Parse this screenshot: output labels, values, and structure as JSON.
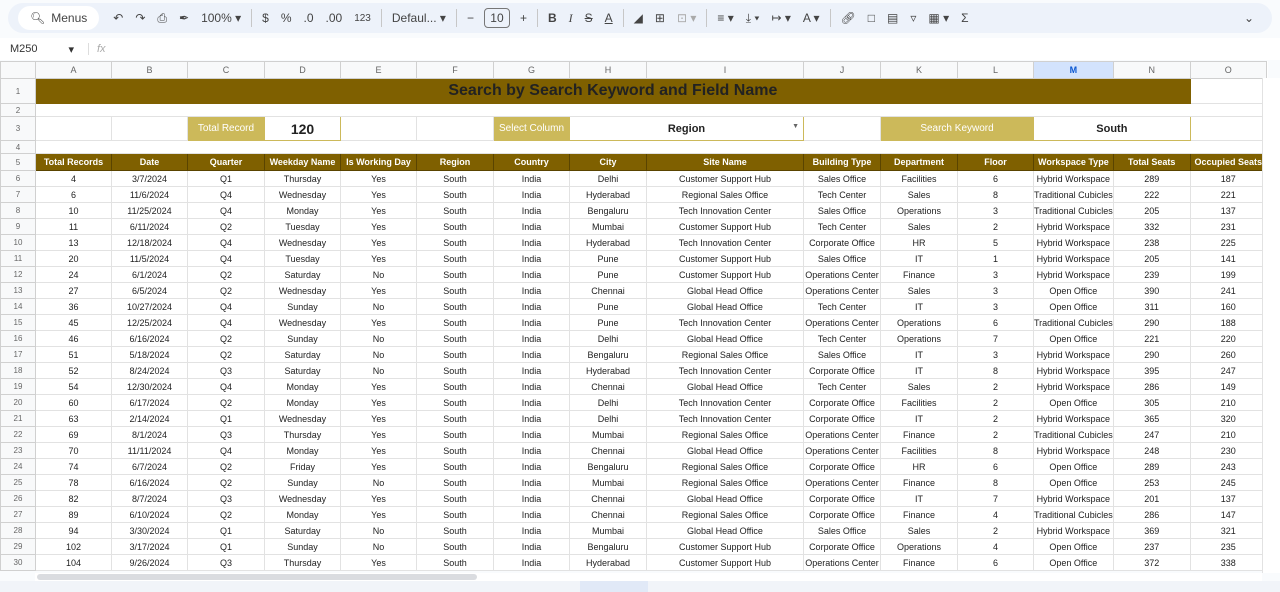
{
  "toolbar": {
    "menus": "Menus",
    "zoom": "100%",
    "currency": "$",
    "percent": "%",
    "dec_decrease": ".0",
    "dec_increase": ".00",
    "format_123": "123",
    "font": "Defaul...",
    "font_size": "10"
  },
  "formula_bar": {
    "cell_ref": "M250",
    "fx": "fx",
    "value": ""
  },
  "columns": [
    "A",
    "B",
    "C",
    "D",
    "E",
    "F",
    "G",
    "H",
    "I",
    "J",
    "K",
    "L",
    "M",
    "N",
    "O"
  ],
  "selected_column": "M",
  "title": "Search by Search Keyword and Field Name",
  "summary": {
    "total_record_label": "Total Record",
    "total_record_value": "120",
    "select_column_label": "Select Column",
    "select_column_value": "Region",
    "search_keyword_label": "Search Keyword",
    "search_keyword_value": "South"
  },
  "colors": {
    "header_bg": "#7f6000",
    "label_bg": "#ccb95a"
  },
  "table": {
    "headers": [
      "Total Records",
      "Date",
      "Quarter",
      "Weekday Name",
      "Is Working Day",
      "Region",
      "Country",
      "City",
      "Site Name",
      "Building Type",
      "Department",
      "Floor",
      "Workspace Type",
      "Total Seats",
      "Occupied Seats"
    ],
    "rows": [
      [
        "4",
        "3/7/2024",
        "Q1",
        "Thursday",
        "Yes",
        "South",
        "India",
        "Delhi",
        "Customer Support Hub",
        "Sales Office",
        "Facilities",
        "6",
        "Hybrid Workspace",
        "289",
        "187"
      ],
      [
        "6",
        "11/6/2024",
        "Q4",
        "Wednesday",
        "Yes",
        "South",
        "India",
        "Hyderabad",
        "Regional Sales Office",
        "Tech Center",
        "Sales",
        "8",
        "Traditional Cubicles",
        "222",
        "221"
      ],
      [
        "10",
        "11/25/2024",
        "Q4",
        "Monday",
        "Yes",
        "South",
        "India",
        "Bengaluru",
        "Tech Innovation Center",
        "Sales Office",
        "Operations",
        "3",
        "Traditional Cubicles",
        "205",
        "137"
      ],
      [
        "11",
        "6/11/2024",
        "Q2",
        "Tuesday",
        "Yes",
        "South",
        "India",
        "Mumbai",
        "Customer Support Hub",
        "Tech Center",
        "Sales",
        "2",
        "Hybrid Workspace",
        "332",
        "231"
      ],
      [
        "13",
        "12/18/2024",
        "Q4",
        "Wednesday",
        "Yes",
        "South",
        "India",
        "Hyderabad",
        "Tech Innovation Center",
        "Corporate Office",
        "HR",
        "5",
        "Hybrid Workspace",
        "238",
        "225"
      ],
      [
        "20",
        "11/5/2024",
        "Q4",
        "Tuesday",
        "Yes",
        "South",
        "India",
        "Pune",
        "Customer Support Hub",
        "Sales Office",
        "IT",
        "1",
        "Hybrid Workspace",
        "205",
        "141"
      ],
      [
        "24",
        "6/1/2024",
        "Q2",
        "Saturday",
        "No",
        "South",
        "India",
        "Pune",
        "Customer Support Hub",
        "Operations Center",
        "Finance",
        "3",
        "Hybrid Workspace",
        "239",
        "199"
      ],
      [
        "27",
        "6/5/2024",
        "Q2",
        "Wednesday",
        "Yes",
        "South",
        "India",
        "Chennai",
        "Global Head Office",
        "Operations Center",
        "Sales",
        "3",
        "Open Office",
        "390",
        "241"
      ],
      [
        "36",
        "10/27/2024",
        "Q4",
        "Sunday",
        "No",
        "South",
        "India",
        "Pune",
        "Global Head Office",
        "Tech Center",
        "IT",
        "3",
        "Open Office",
        "311",
        "160"
      ],
      [
        "45",
        "12/25/2024",
        "Q4",
        "Wednesday",
        "Yes",
        "South",
        "India",
        "Pune",
        "Tech Innovation Center",
        "Operations Center",
        "Operations",
        "6",
        "Traditional Cubicles",
        "290",
        "188"
      ],
      [
        "46",
        "6/16/2024",
        "Q2",
        "Sunday",
        "No",
        "South",
        "India",
        "Delhi",
        "Global Head Office",
        "Tech Center",
        "Operations",
        "7",
        "Open Office",
        "221",
        "220"
      ],
      [
        "51",
        "5/18/2024",
        "Q2",
        "Saturday",
        "No",
        "South",
        "India",
        "Bengaluru",
        "Regional Sales Office",
        "Sales Office",
        "IT",
        "3",
        "Hybrid Workspace",
        "290",
        "260"
      ],
      [
        "52",
        "8/24/2024",
        "Q3",
        "Saturday",
        "No",
        "South",
        "India",
        "Hyderabad",
        "Tech Innovation Center",
        "Corporate Office",
        "IT",
        "8",
        "Hybrid Workspace",
        "395",
        "247"
      ],
      [
        "54",
        "12/30/2024",
        "Q4",
        "Monday",
        "Yes",
        "South",
        "India",
        "Chennai",
        "Global Head Office",
        "Tech Center",
        "Sales",
        "2",
        "Hybrid Workspace",
        "286",
        "149"
      ],
      [
        "60",
        "6/17/2024",
        "Q2",
        "Monday",
        "Yes",
        "South",
        "India",
        "Delhi",
        "Tech Innovation Center",
        "Corporate Office",
        "Facilities",
        "2",
        "Open Office",
        "305",
        "210"
      ],
      [
        "63",
        "2/14/2024",
        "Q1",
        "Wednesday",
        "Yes",
        "South",
        "India",
        "Delhi",
        "Tech Innovation Center",
        "Corporate Office",
        "IT",
        "2",
        "Hybrid Workspace",
        "365",
        "320"
      ],
      [
        "69",
        "8/1/2024",
        "Q3",
        "Thursday",
        "Yes",
        "South",
        "India",
        "Mumbai",
        "Regional Sales Office",
        "Operations Center",
        "Finance",
        "2",
        "Traditional Cubicles",
        "247",
        "210"
      ],
      [
        "70",
        "11/11/2024",
        "Q4",
        "Monday",
        "Yes",
        "South",
        "India",
        "Chennai",
        "Global Head Office",
        "Operations Center",
        "Facilities",
        "8",
        "Hybrid Workspace",
        "248",
        "230"
      ],
      [
        "74",
        "6/7/2024",
        "Q2",
        "Friday",
        "Yes",
        "South",
        "India",
        "Bengaluru",
        "Regional Sales Office",
        "Corporate Office",
        "HR",
        "6",
        "Open Office",
        "289",
        "243"
      ],
      [
        "78",
        "6/16/2024",
        "Q2",
        "Sunday",
        "No",
        "South",
        "India",
        "Mumbai",
        "Regional Sales Office",
        "Operations Center",
        "Finance",
        "8",
        "Open Office",
        "253",
        "245"
      ],
      [
        "82",
        "8/7/2024",
        "Q3",
        "Wednesday",
        "Yes",
        "South",
        "India",
        "Chennai",
        "Global Head Office",
        "Corporate Office",
        "IT",
        "7",
        "Hybrid Workspace",
        "201",
        "137"
      ],
      [
        "89",
        "6/10/2024",
        "Q2",
        "Monday",
        "Yes",
        "South",
        "India",
        "Chennai",
        "Regional Sales Office",
        "Corporate Office",
        "Finance",
        "4",
        "Traditional Cubicles",
        "286",
        "147"
      ],
      [
        "94",
        "3/30/2024",
        "Q1",
        "Saturday",
        "No",
        "South",
        "India",
        "Mumbai",
        "Global Head Office",
        "Sales Office",
        "Sales",
        "2",
        "Hybrid Workspace",
        "369",
        "321"
      ],
      [
        "102",
        "3/17/2024",
        "Q1",
        "Sunday",
        "No",
        "South",
        "India",
        "Bengaluru",
        "Customer Support Hub",
        "Corporate Office",
        "Operations",
        "4",
        "Open Office",
        "237",
        "235"
      ],
      [
        "104",
        "9/26/2024",
        "Q3",
        "Thursday",
        "Yes",
        "South",
        "India",
        "Hyderabad",
        "Customer Support Hub",
        "Operations Center",
        "Finance",
        "6",
        "Open Office",
        "372",
        "338"
      ]
    ]
  }
}
